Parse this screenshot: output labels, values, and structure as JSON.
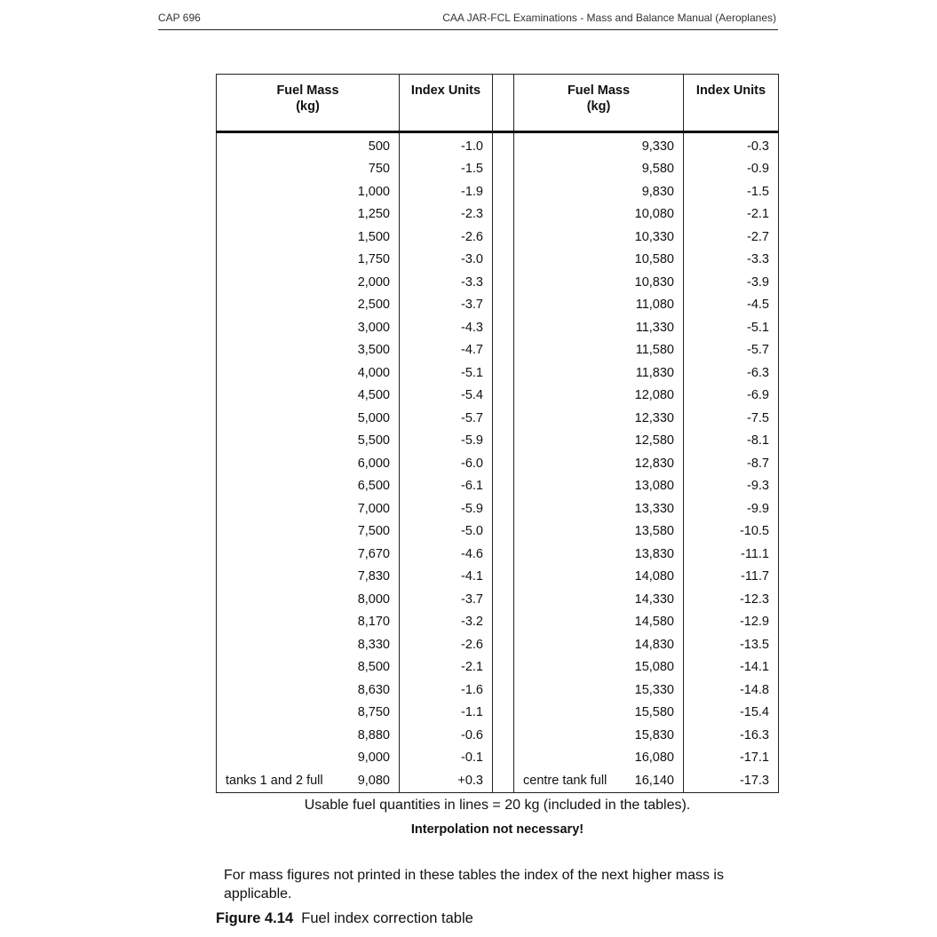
{
  "header": {
    "left": "CAP 696",
    "right": "CAA JAR-FCL Examinations - Mass and Balance Manual (Aeroplanes)"
  },
  "table": {
    "headers": {
      "mass_line1": "Fuel Mass",
      "mass_line2": "(kg)",
      "index": "Index Units"
    },
    "left_rows": [
      {
        "mass": "500",
        "index": "-1.0"
      },
      {
        "mass": "750",
        "index": "-1.5"
      },
      {
        "mass": "1,000",
        "index": "-1.9"
      },
      {
        "mass": "1,250",
        "index": "-2.3"
      },
      {
        "mass": "1,500",
        "index": "-2.6"
      },
      {
        "mass": "1,750",
        "index": "-3.0"
      },
      {
        "mass": "2,000",
        "index": "-3.3"
      },
      {
        "mass": "2,500",
        "index": "-3.7"
      },
      {
        "mass": "3,000",
        "index": "-4.3"
      },
      {
        "mass": "3,500",
        "index": "-4.7"
      },
      {
        "mass": "4,000",
        "index": "-5.1"
      },
      {
        "mass": "4,500",
        "index": "-5.4"
      },
      {
        "mass": "5,000",
        "index": "-5.7"
      },
      {
        "mass": "5,500",
        "index": "-5.9"
      },
      {
        "mass": "6,000",
        "index": "-6.0"
      },
      {
        "mass": "6,500",
        "index": "-6.1"
      },
      {
        "mass": "7,000",
        "index": "-5.9"
      },
      {
        "mass": "7,500",
        "index": "-5.0"
      },
      {
        "mass": "7,670",
        "index": "-4.6"
      },
      {
        "mass": "7,830",
        "index": "-4.1"
      },
      {
        "mass": "8,000",
        "index": "-3.7"
      },
      {
        "mass": "8,170",
        "index": "-3.2"
      },
      {
        "mass": "8,330",
        "index": "-2.6"
      },
      {
        "mass": "8,500",
        "index": "-2.1"
      },
      {
        "mass": "8,630",
        "index": "-1.6"
      },
      {
        "mass": "8,750",
        "index": "-1.1"
      },
      {
        "mass": "8,880",
        "index": "-0.6"
      },
      {
        "mass": "9,000",
        "index": "-0.1"
      },
      {
        "mass": "9,080",
        "index": "+0.3",
        "note": "tanks 1 and 2 full"
      }
    ],
    "right_rows": [
      {
        "mass": "9,330",
        "index": "-0.3"
      },
      {
        "mass": "9,580",
        "index": "-0.9"
      },
      {
        "mass": "9,830",
        "index": "-1.5"
      },
      {
        "mass": "10,080",
        "index": "-2.1"
      },
      {
        "mass": "10,330",
        "index": "-2.7"
      },
      {
        "mass": "10,580",
        "index": "-3.3"
      },
      {
        "mass": "10,830",
        "index": "-3.9"
      },
      {
        "mass": "11,080",
        "index": "-4.5"
      },
      {
        "mass": "11,330",
        "index": "-5.1"
      },
      {
        "mass": "11,580",
        "index": "-5.7"
      },
      {
        "mass": "11,830",
        "index": "-6.3"
      },
      {
        "mass": "12,080",
        "index": "-6.9"
      },
      {
        "mass": "12,330",
        "index": "-7.5"
      },
      {
        "mass": "12,580",
        "index": "-8.1"
      },
      {
        "mass": "12,830",
        "index": "-8.7"
      },
      {
        "mass": "13,080",
        "index": "-9.3"
      },
      {
        "mass": "13,330",
        "index": "-9.9"
      },
      {
        "mass": "13,580",
        "index": "-10.5"
      },
      {
        "mass": "13,830",
        "index": "-11.1"
      },
      {
        "mass": "14,080",
        "index": "-11.7"
      },
      {
        "mass": "14,330",
        "index": "-12.3"
      },
      {
        "mass": "14,580",
        "index": "-12.9"
      },
      {
        "mass": "14,830",
        "index": "-13.5"
      },
      {
        "mass": "15,080",
        "index": "-14.1"
      },
      {
        "mass": "15,330",
        "index": "-14.8"
      },
      {
        "mass": "15,580",
        "index": "-15.4"
      },
      {
        "mass": "15,830",
        "index": "-16.3"
      },
      {
        "mass": "16,080",
        "index": "-17.1"
      },
      {
        "mass": "16,140",
        "index": "-17.3",
        "note": "centre tank full"
      }
    ]
  },
  "notes": {
    "usable": "Usable fuel quantities in lines = 20 kg (included in the tables).",
    "interpolation": "Interpolation not necessary!",
    "footnote": "For mass figures not printed in these tables the index of the next higher mass is applicable."
  },
  "caption": {
    "number": "Figure 4.14",
    "text": "Fuel index correction table"
  }
}
